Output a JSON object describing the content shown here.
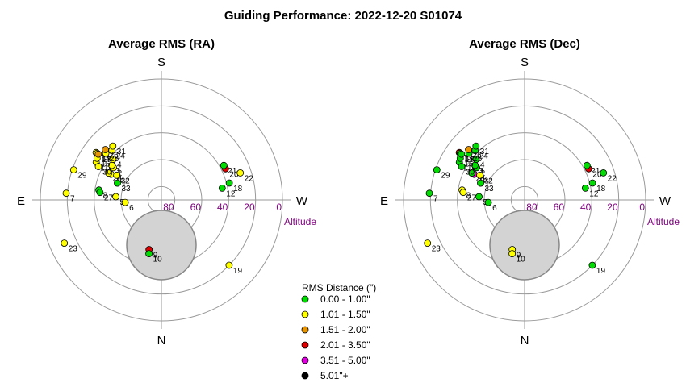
{
  "figure": {
    "title": "Guiding Performance: 2022-12-20 S01074"
  },
  "legend": {
    "title": "RMS Distance (\")",
    "items": [
      {
        "label": "0.00 - 1.00\"",
        "color": "#00dd00"
      },
      {
        "label": "1.01 - 1.50\"",
        "color": "#ffff00"
      },
      {
        "label": "1.51 - 2.00\"",
        "color": "#e69500"
      },
      {
        "label": "2.01 - 3.50\"",
        "color": "#dd0000"
      },
      {
        "label": "3.51 - 5.00\"",
        "color": "#dd00dd"
      },
      {
        "label": "5.01\"+",
        "color": "#000000"
      }
    ]
  },
  "chart_data": [
    {
      "type": "scatter",
      "projection": "polar-altaz",
      "title": "Average RMS (RA)",
      "directions": {
        "top": "S",
        "bottom": "N",
        "left": "E",
        "right": "W"
      },
      "r_ticks": [
        "80",
        "60",
        "40",
        "20",
        "0"
      ],
      "r_axis_label": "Altitude",
      "altitude_range": [
        0,
        90
      ],
      "obstruction_label": "",
      "points": [
        {
          "id": "1",
          "az": 124,
          "alt": 46,
          "cat": 1
        },
        {
          "id": "2",
          "az": 124,
          "alt": 47,
          "cat": 1
        },
        {
          "id": "3",
          "az": 125,
          "alt": 45,
          "cat": 1
        },
        {
          "id": "4",
          "az": 130,
          "alt": 43,
          "cat": 1
        },
        {
          "id": "5",
          "az": 94,
          "alt": 56,
          "cat": 1
        },
        {
          "id": "6",
          "az": 86,
          "alt": 63,
          "cat": 1
        },
        {
          "id": "7",
          "az": 94,
          "alt": 19,
          "cat": 1
        },
        {
          "id": "8",
          "az": 99,
          "alt": 43,
          "cat": 0
        },
        {
          "id": "9",
          "az": 14,
          "alt": 52,
          "cat": 3
        },
        {
          "id": "10",
          "az": 13,
          "alt": 49,
          "cat": 0
        },
        {
          "id": "11",
          "az": 120,
          "alt": 34,
          "cat": 1
        },
        {
          "id": "12",
          "az": 259,
          "alt": 44,
          "cat": 0
        },
        {
          "id": "13",
          "az": 126,
          "alt": 30,
          "cat": 1
        },
        {
          "id": "14",
          "az": 126,
          "alt": 31,
          "cat": 1
        },
        {
          "id": "15",
          "az": 117,
          "alt": 48,
          "cat": 1
        },
        {
          "id": "16",
          "az": 123,
          "alt": 33,
          "cat": 1
        },
        {
          "id": "17",
          "az": 126,
          "alt": 32,
          "cat": 2
        },
        {
          "id": "18",
          "az": 256,
          "alt": 38,
          "cat": 0
        },
        {
          "id": "19",
          "az": 314,
          "alt": 20,
          "cat": 1
        },
        {
          "id": "20",
          "az": 244,
          "alt": 37,
          "cat": 3
        },
        {
          "id": "21",
          "az": 241,
          "alt": 37,
          "cat": 0
        },
        {
          "id": "22",
          "az": 251,
          "alt": 28,
          "cat": 1
        },
        {
          "id": "23",
          "az": 66,
          "alt": 11,
          "cat": 1
        },
        {
          "id": "24",
          "az": 135,
          "alt": 38,
          "cat": 1
        },
        {
          "id": "25",
          "az": 130,
          "alt": 36,
          "cat": 1
        },
        {
          "id": "26",
          "az": 132,
          "alt": 34,
          "cat": 2
        },
        {
          "id": "27",
          "az": 97,
          "alt": 44,
          "cat": 0
        },
        {
          "id": "28",
          "az": 117,
          "alt": 46,
          "cat": 1
        },
        {
          "id": "29",
          "az": 109,
          "alt": 21,
          "cat": 1
        },
        {
          "id": "30",
          "az": 118,
          "alt": 37,
          "cat": 1
        },
        {
          "id": "31",
          "az": 138,
          "alt": 36,
          "cat": 1
        },
        {
          "id": "32",
          "az": 119,
          "alt": 52,
          "cat": 1
        },
        {
          "id": "33",
          "az": 111,
          "alt": 55,
          "cat": 0
        }
      ]
    },
    {
      "type": "scatter",
      "projection": "polar-altaz",
      "title": "Average RMS (Dec)",
      "directions": {
        "top": "S",
        "bottom": "N",
        "left": "E",
        "right": "W"
      },
      "r_ticks": [
        "80",
        "60",
        "40",
        "20",
        "0"
      ],
      "r_axis_label": "Altitude",
      "altitude_range": [
        0,
        90
      ],
      "obstruction_label": "",
      "points": [
        {
          "id": "1",
          "az": 124,
          "alt": 46,
          "cat": 0
        },
        {
          "id": "2",
          "az": 124,
          "alt": 47,
          "cat": 0
        },
        {
          "id": "3",
          "az": 125,
          "alt": 45,
          "cat": 0
        },
        {
          "id": "4",
          "az": 130,
          "alt": 43,
          "cat": 0
        },
        {
          "id": "5",
          "az": 94,
          "alt": 56,
          "cat": 0
        },
        {
          "id": "6",
          "az": 86,
          "alt": 63,
          "cat": 0
        },
        {
          "id": "7",
          "az": 94,
          "alt": 19,
          "cat": 0
        },
        {
          "id": "8",
          "az": 99,
          "alt": 43,
          "cat": 1
        },
        {
          "id": "9",
          "az": 14,
          "alt": 52,
          "cat": 1
        },
        {
          "id": "10",
          "az": 13,
          "alt": 49,
          "cat": 1
        },
        {
          "id": "11",
          "az": 120,
          "alt": 34,
          "cat": 0
        },
        {
          "id": "12",
          "az": 259,
          "alt": 44,
          "cat": 0
        },
        {
          "id": "13",
          "az": 126,
          "alt": 30,
          "cat": 3
        },
        {
          "id": "14",
          "az": 126,
          "alt": 31,
          "cat": 0
        },
        {
          "id": "15",
          "az": 117,
          "alt": 48,
          "cat": 4
        },
        {
          "id": "16",
          "az": 123,
          "alt": 33,
          "cat": 0
        },
        {
          "id": "17",
          "az": 126,
          "alt": 32,
          "cat": 0
        },
        {
          "id": "18",
          "az": 256,
          "alt": 38,
          "cat": 0
        },
        {
          "id": "19",
          "az": 314,
          "alt": 20,
          "cat": 0
        },
        {
          "id": "20",
          "az": 244,
          "alt": 37,
          "cat": 3
        },
        {
          "id": "21",
          "az": 241,
          "alt": 37,
          "cat": 0
        },
        {
          "id": "22",
          "az": 251,
          "alt": 28,
          "cat": 0
        },
        {
          "id": "23",
          "az": 66,
          "alt": 11,
          "cat": 1
        },
        {
          "id": "24",
          "az": 135,
          "alt": 38,
          "cat": 0
        },
        {
          "id": "25",
          "az": 130,
          "alt": 36,
          "cat": 0
        },
        {
          "id": "26",
          "az": 132,
          "alt": 34,
          "cat": 2
        },
        {
          "id": "27",
          "az": 97,
          "alt": 44,
          "cat": 1
        },
        {
          "id": "28",
          "az": 117,
          "alt": 46,
          "cat": 0
        },
        {
          "id": "29",
          "az": 109,
          "alt": 21,
          "cat": 0
        },
        {
          "id": "30",
          "az": 118,
          "alt": 37,
          "cat": 0
        },
        {
          "id": "31",
          "az": 138,
          "alt": 36,
          "cat": 0
        },
        {
          "id": "32",
          "az": 119,
          "alt": 52,
          "cat": 1
        },
        {
          "id": "33",
          "az": 111,
          "alt": 55,
          "cat": 0
        }
      ]
    }
  ]
}
